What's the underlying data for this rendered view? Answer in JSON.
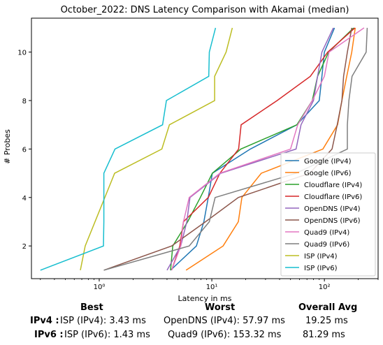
{
  "chart_data": {
    "type": "line",
    "title": "October_2022: DNS Latency Comparison with Akamai (median)",
    "xlabel": "Latency in ms",
    "ylabel": "# Probes",
    "xscale": "log",
    "xlim": [
      0.25,
      300
    ],
    "ylim": [
      0.65,
      11.4
    ],
    "x_ticks": [
      {
        "value": 1,
        "label": "10⁰"
      },
      {
        "value": 10,
        "label": "10¹"
      },
      {
        "value": 100,
        "label": "10²"
      }
    ],
    "y_ticks": [
      2,
      4,
      6,
      8,
      10
    ],
    "grid": false,
    "legend_placement": "lower-right",
    "series": [
      {
        "name": "Google (IPv4)",
        "color": "#1f77b4",
        "points": [
          [
            4.3,
            1
          ],
          [
            7.3,
            2
          ],
          [
            8.5,
            3
          ],
          [
            9.3,
            4
          ],
          [
            10.1,
            5
          ],
          [
            22,
            6
          ],
          [
            57,
            7
          ],
          [
            90,
            8
          ],
          [
            95,
            9
          ],
          [
            100,
            10
          ],
          [
            123,
            11
          ]
        ]
      },
      {
        "name": "Google (IPv6)",
        "color": "#ff7f0e",
        "points": [
          [
            5.9,
            1
          ],
          [
            12.6,
            2
          ],
          [
            17.2,
            3
          ],
          [
            18.5,
            4
          ],
          [
            27.5,
            5
          ],
          [
            97,
            6
          ],
          [
            131,
            7
          ],
          [
            143,
            8
          ],
          [
            158,
            9
          ],
          [
            175,
            10
          ],
          [
            188,
            11
          ]
        ]
      },
      {
        "name": "Cloudflare (IPv4)",
        "color": "#2ca02c",
        "points": [
          [
            4.3,
            1
          ],
          [
            4.5,
            2
          ],
          [
            6.1,
            3
          ],
          [
            7.9,
            4
          ],
          [
            10.1,
            5
          ],
          [
            18.1,
            6
          ],
          [
            57,
            7
          ],
          [
            78,
            8
          ],
          [
            87,
            9
          ],
          [
            109,
            10
          ],
          [
            182,
            11
          ]
        ]
      },
      {
        "name": "Cloudflare (IPv6)",
        "color": "#d62728",
        "points": [
          [
            4.4,
            1
          ],
          [
            5.2,
            2
          ],
          [
            5.6,
            3
          ],
          [
            9.3,
            4
          ],
          [
            11.8,
            5
          ],
          [
            17.3,
            6
          ],
          [
            18.2,
            7
          ],
          [
            38,
            8
          ],
          [
            75,
            9
          ],
          [
            107,
            10
          ],
          [
            187,
            11
          ]
        ]
      },
      {
        "name": "OpenDNS (IPv4)",
        "color": "#9467bd",
        "points": [
          [
            4.0,
            1
          ],
          [
            5.3,
            2
          ],
          [
            6.0,
            3
          ],
          [
            6.4,
            4
          ],
          [
            12.0,
            5
          ],
          [
            56,
            6
          ],
          [
            62,
            7
          ],
          [
            80,
            8
          ],
          [
            87,
            9
          ],
          [
            95,
            10
          ],
          [
            120,
            11
          ]
        ]
      },
      {
        "name": "OpenDNS (IPv6)",
        "color": "#8c564b",
        "points": [
          [
            1.1,
            1
          ],
          [
            4.4,
            2
          ],
          [
            8.8,
            3
          ],
          [
            17.2,
            4
          ],
          [
            74,
            5
          ],
          [
            117,
            6
          ],
          [
            130,
            7
          ],
          [
            143,
            8
          ],
          [
            148,
            9
          ],
          [
            160,
            10
          ],
          [
            175,
            11
          ]
        ]
      },
      {
        "name": "Quad9 (IPv4)",
        "color": "#e377c2",
        "points": [
          [
            4.4,
            1
          ],
          [
            5.3,
            2
          ],
          [
            5.6,
            3
          ],
          [
            6.3,
            4
          ],
          [
            11.8,
            5
          ],
          [
            50,
            6
          ],
          [
            58,
            7
          ],
          [
            78,
            8
          ],
          [
            100,
            9
          ],
          [
            110,
            10
          ],
          [
            225,
            11
          ]
        ]
      },
      {
        "name": "Quad9 (IPv6)",
        "color": "#7f7f7f",
        "points": [
          [
            1.1,
            1
          ],
          [
            6.3,
            2
          ],
          [
            9.5,
            3
          ],
          [
            10.7,
            4
          ],
          [
            56,
            5
          ],
          [
            160,
            6
          ],
          [
            160,
            7
          ],
          [
            165,
            8
          ],
          [
            176,
            9
          ],
          [
            235,
            10
          ],
          [
            240,
            11
          ]
        ]
      },
      {
        "name": "ISP (IPv4)",
        "color": "#bcbd22",
        "points": [
          [
            0.68,
            1
          ],
          [
            0.75,
            2
          ],
          [
            1.37,
            5
          ],
          [
            3.6,
            6
          ],
          [
            4.2,
            7
          ],
          [
            10.6,
            8
          ],
          [
            10.6,
            9
          ],
          [
            13.4,
            10
          ],
          [
            15.2,
            11
          ]
        ]
      },
      {
        "name": "ISP (IPv6)",
        "color": "#17becf",
        "points": [
          [
            0.3,
            1
          ],
          [
            1.09,
            2
          ],
          [
            1.1,
            3
          ],
          [
            1.1,
            4
          ],
          [
            1.1,
            5
          ],
          [
            1.38,
            6
          ],
          [
            3.65,
            7
          ],
          [
            3.95,
            8
          ],
          [
            9.4,
            9
          ],
          [
            9.5,
            10
          ],
          [
            10.8,
            11
          ]
        ]
      }
    ]
  },
  "summary": {
    "col_best": "Best",
    "col_worst": "Worst",
    "col_avg": "Overall Avg",
    "rows": [
      {
        "label": "IPv4 :",
        "best": "ISP (IPv4): 3.43 ms",
        "worst": "OpenDNS (IPv4): 57.97 ms",
        "avg": "19.25 ms"
      },
      {
        "label": "IPv6 :",
        "best": "ISP (IPv6): 1.43 ms",
        "worst": "Quad9 (IPv6): 153.32 ms",
        "avg": "81.29 ms"
      }
    ]
  }
}
